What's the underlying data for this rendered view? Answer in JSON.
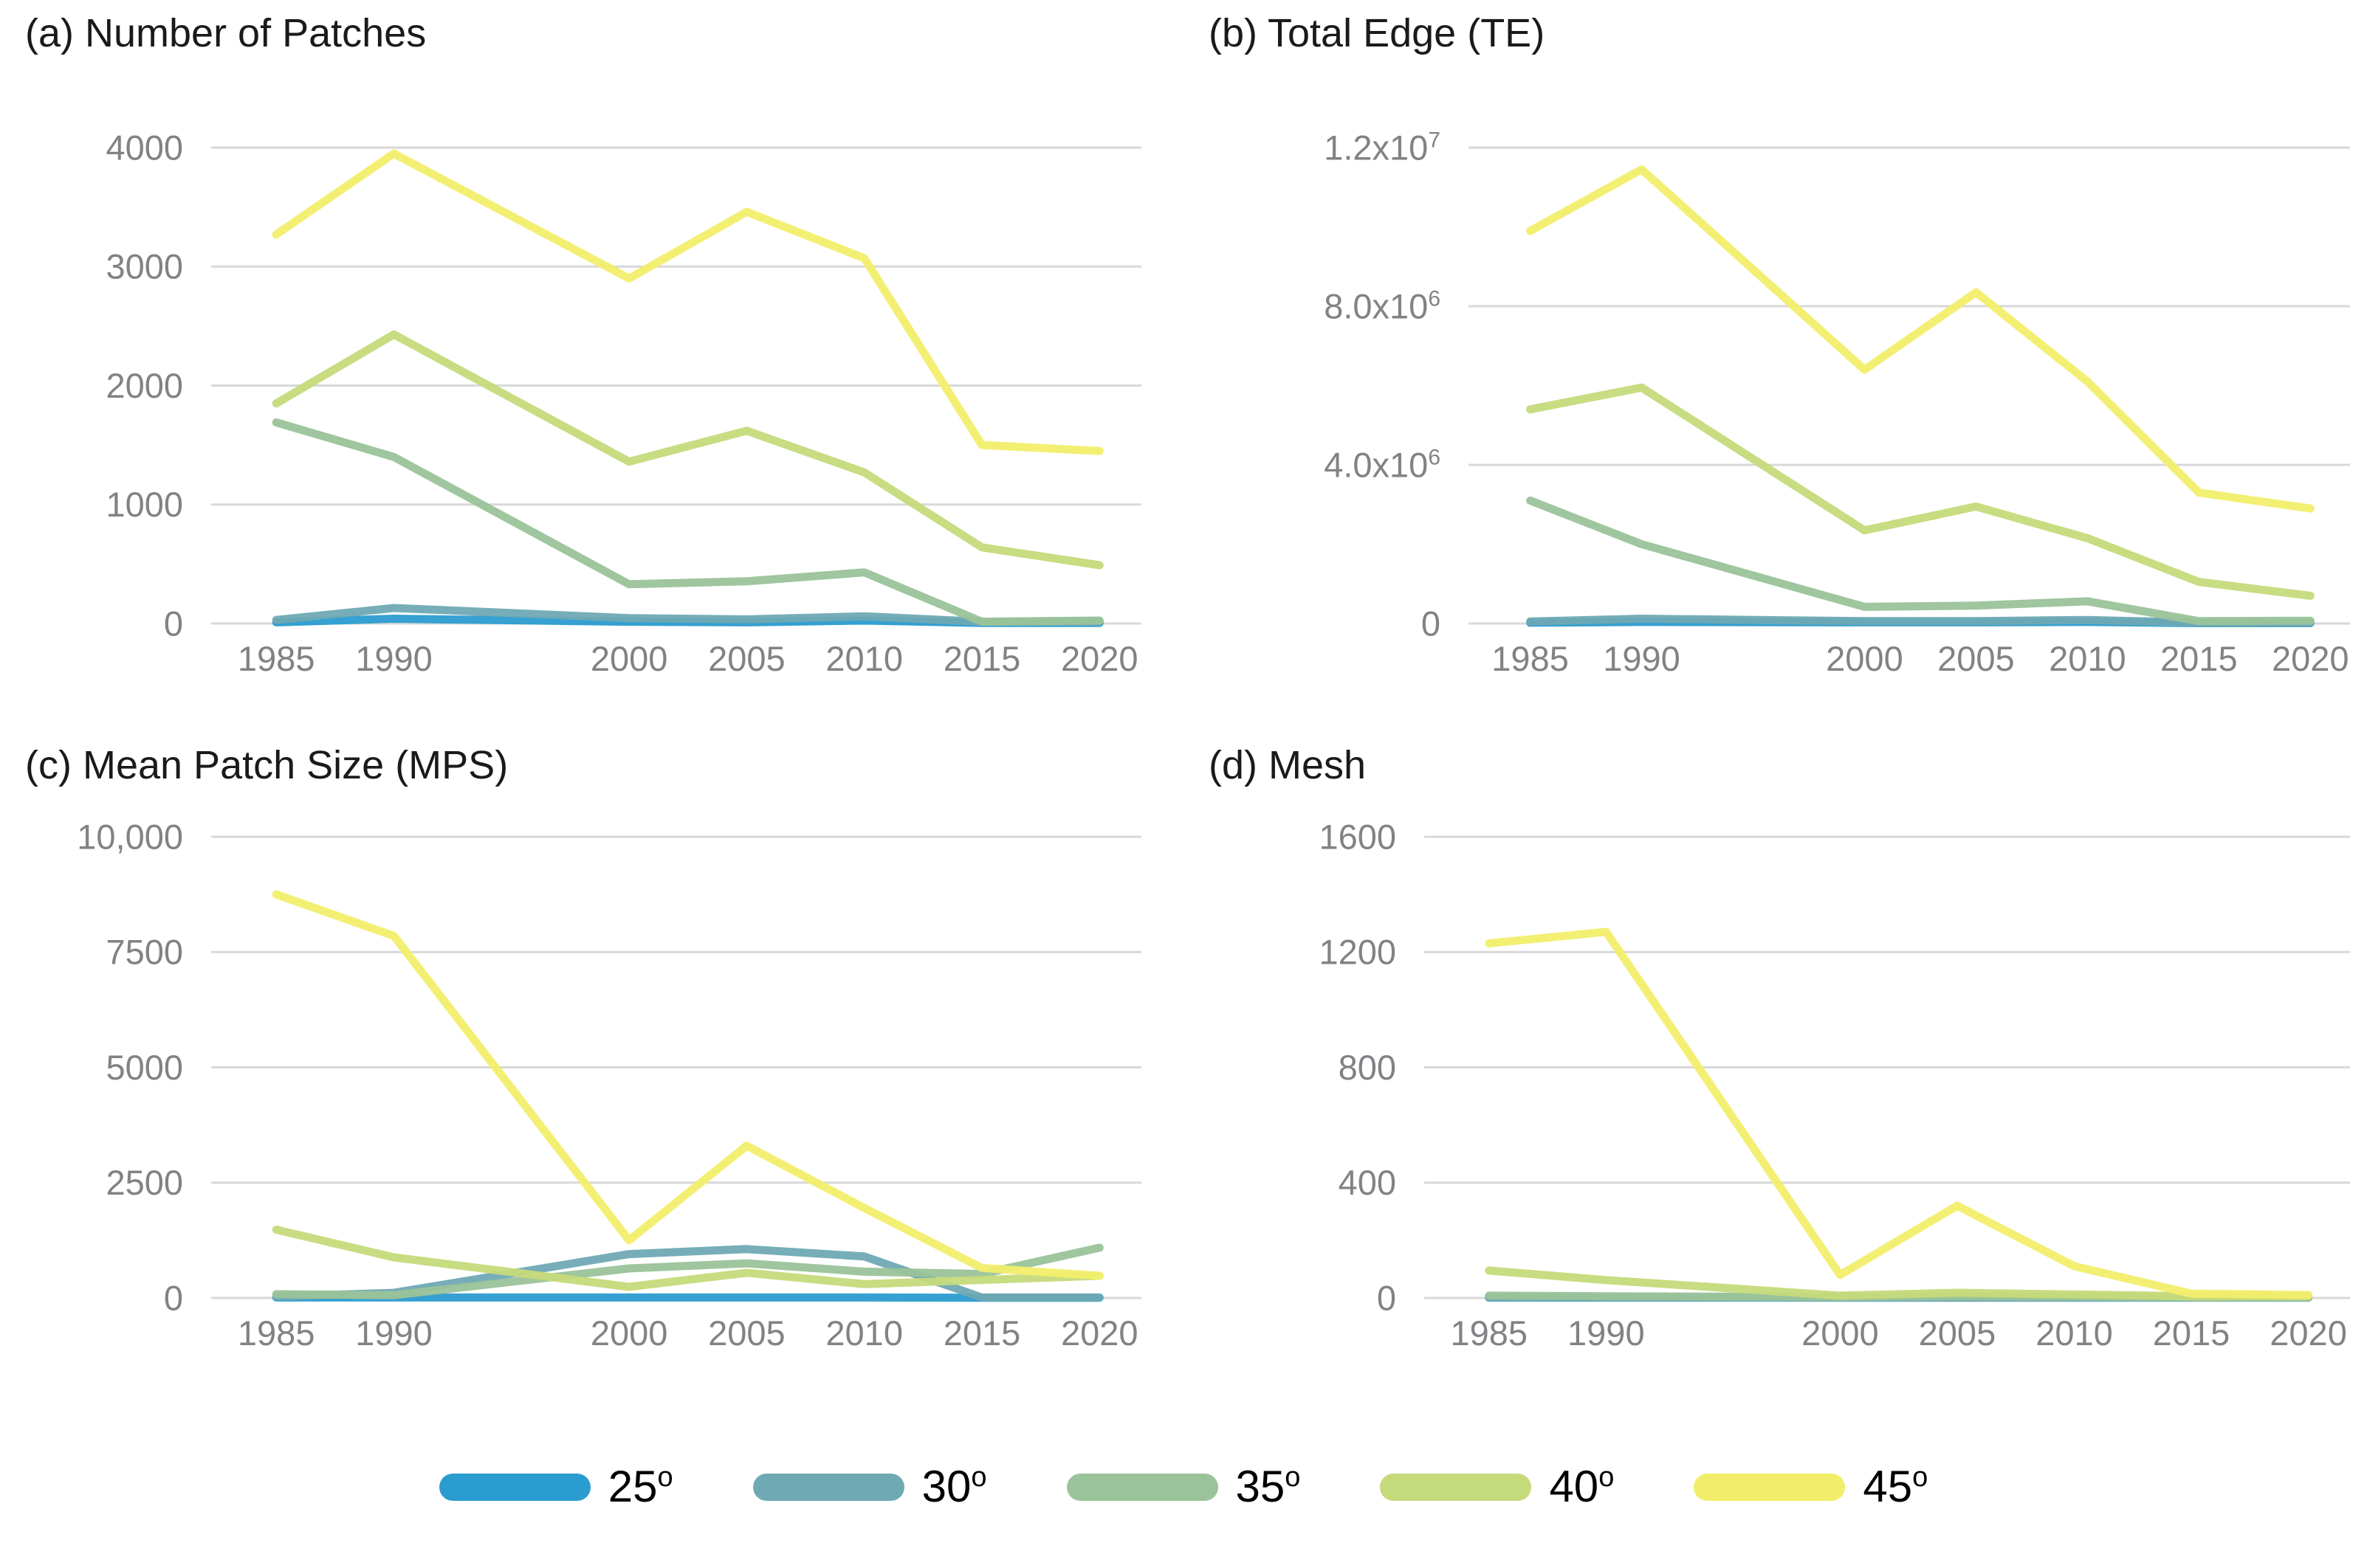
{
  "figure": {
    "background": "#ffffff",
    "gridline_color": "#d8d8d8",
    "tick_label_color": "#808285",
    "title_color": "#1a1a1a"
  },
  "legend": {
    "items": [
      {
        "label": "25^o",
        "color": "#2b9cd0"
      },
      {
        "label": "30^o",
        "color": "#6fa9b4"
      },
      {
        "label": "35^o",
        "color": "#9ac399"
      },
      {
        "label": "40^o",
        "color": "#c5da7a"
      },
      {
        "label": "45^o",
        "color": "#f2ee6b"
      }
    ]
  },
  "chart_data": [
    {
      "id": "a",
      "type": "line",
      "title": "(a) Number of Patches",
      "x": [
        1985,
        1990,
        2000,
        2005,
        2010,
        2015,
        2020
      ],
      "x_tick_labels": [
        "1985",
        "1990",
        "2000",
        "2005",
        "2010",
        "2015",
        "2020"
      ],
      "xlim": [
        1985,
        2020
      ],
      "ylim": [
        0,
        4000
      ],
      "grid": true,
      "yticks": [
        {
          "v": 0,
          "label": "0"
        },
        {
          "v": 1000,
          "label": "1000"
        },
        {
          "v": 2000,
          "label": "2000"
        },
        {
          "v": 3000,
          "label": "3000"
        },
        {
          "v": 4000,
          "label": "4000"
        }
      ],
      "series": [
        {
          "name": "25^o",
          "color": "#2b9cd0",
          "values": [
            10,
            40,
            15,
            10,
            25,
            5,
            5
          ]
        },
        {
          "name": "30^o",
          "color": "#6fa9b4",
          "values": [
            30,
            130,
            45,
            35,
            60,
            15,
            15
          ]
        },
        {
          "name": "35^o",
          "color": "#9ac399",
          "values": [
            1690,
            1400,
            330,
            355,
            430,
            15,
            25
          ]
        },
        {
          "name": "40^o",
          "color": "#c5da7a",
          "values": [
            1850,
            2430,
            1360,
            1620,
            1270,
            640,
            490
          ]
        },
        {
          "name": "45^o",
          "color": "#f2ee6b",
          "values": [
            3270,
            3950,
            2900,
            3460,
            3070,
            1500,
            1450
          ]
        }
      ]
    },
    {
      "id": "b",
      "type": "line",
      "title": "(b) Total Edge (TE)",
      "x": [
        1985,
        1990,
        2000,
        2005,
        2010,
        2015,
        2020
      ],
      "x_tick_labels": [
        "1985",
        "1990",
        "2000",
        "2005",
        "2010",
        "2015",
        "2020"
      ],
      "xlim": [
        1985,
        2020
      ],
      "ylim": [
        0,
        12000000
      ],
      "grid": true,
      "yticks": [
        {
          "v": 0,
          "label": "0"
        },
        {
          "v": 4000000,
          "label": "4.0x10^6"
        },
        {
          "v": 8000000,
          "label": "8.0x10^6"
        },
        {
          "v": 12000000,
          "label": "1.2x10^7"
        }
      ],
      "series": [
        {
          "name": "25^o",
          "color": "#2b9cd0",
          "values": [
            20000,
            40000,
            30000,
            30000,
            40000,
            10000,
            10000
          ]
        },
        {
          "name": "30^o",
          "color": "#6fa9b4",
          "values": [
            50000,
            120000,
            60000,
            60000,
            90000,
            20000,
            20000
          ]
        },
        {
          "name": "35^o",
          "color": "#9ac399",
          "values": [
            3100000,
            2000000,
            420000,
            450000,
            560000,
            60000,
            70000
          ]
        },
        {
          "name": "40^o",
          "color": "#c5da7a",
          "values": [
            5400000,
            5950000,
            2350000,
            2950000,
            2150000,
            1050000,
            700000
          ]
        },
        {
          "name": "45^o",
          "color": "#f2ee6b",
          "values": [
            9900000,
            11450000,
            6400000,
            8350000,
            6100000,
            3300000,
            2900000
          ]
        }
      ]
    },
    {
      "id": "c",
      "type": "line",
      "title": "(c) Mean Patch Size (MPS)",
      "x": [
        1985,
        1990,
        2000,
        2005,
        2010,
        2015,
        2020
      ],
      "x_tick_labels": [
        "1985",
        "1990",
        "2000",
        "2005",
        "2010",
        "2015",
        "2020"
      ],
      "xlim": [
        1985,
        2020
      ],
      "ylim": [
        0,
        10000
      ],
      "grid": true,
      "yticks": [
        {
          "v": 0,
          "label": "0"
        },
        {
          "v": 2500,
          "label": "2500"
        },
        {
          "v": 5000,
          "label": "5000"
        },
        {
          "v": 7500,
          "label": "7500"
        },
        {
          "v": 10000,
          "label": "10,000"
        }
      ],
      "series": [
        {
          "name": "25^o",
          "color": "#2b9cd0",
          "values": [
            10,
            10,
            10,
            10,
            10,
            5,
            5
          ]
        },
        {
          "name": "30^o",
          "color": "#6fa9b4",
          "values": [
            30,
            110,
            950,
            1060,
            900,
            10,
            10
          ]
        },
        {
          "name": "35^o",
          "color": "#9ac399",
          "values": [
            80,
            60,
            640,
            750,
            570,
            520,
            1090
          ]
        },
        {
          "name": "40^o",
          "color": "#c5da7a",
          "values": [
            1480,
            880,
            240,
            545,
            300,
            390,
            480
          ]
        },
        {
          "name": "45^o",
          "color": "#f2ee6b",
          "values": [
            8750,
            7850,
            1250,
            3300,
            1950,
            650,
            480
          ]
        }
      ]
    },
    {
      "id": "d",
      "type": "line",
      "title": "(d) Mesh",
      "x": [
        1985,
        1990,
        2000,
        2005,
        2010,
        2015,
        2020
      ],
      "x_tick_labels": [
        "1985",
        "1990",
        "2000",
        "2005",
        "2010",
        "2015",
        "2020"
      ],
      "xlim": [
        1985,
        2020
      ],
      "ylim": [
        0,
        1600
      ],
      "grid": true,
      "yticks": [
        {
          "v": 0,
          "label": "0"
        },
        {
          "v": 400,
          "label": "400"
        },
        {
          "v": 800,
          "label": "800"
        },
        {
          "v": 1200,
          "label": "1200"
        },
        {
          "v": 1600,
          "label": "1600"
        }
      ],
      "series": [
        {
          "name": "25^o",
          "color": "#2b9cd0",
          "values": [
            1,
            1,
            1,
            1,
            1,
            1,
            1
          ]
        },
        {
          "name": "30^o",
          "color": "#6fa9b4",
          "values": [
            2,
            2,
            1,
            1,
            1,
            1,
            1
          ]
        },
        {
          "name": "35^o",
          "color": "#9ac399",
          "values": [
            8,
            6,
            3,
            6,
            4,
            2,
            2
          ]
        },
        {
          "name": "40^o",
          "color": "#c5da7a",
          "values": [
            95,
            62,
            8,
            18,
            12,
            6,
            6
          ]
        },
        {
          "name": "45^o",
          "color": "#f2ee6b",
          "values": [
            1230,
            1270,
            80,
            320,
            110,
            15,
            10
          ]
        }
      ]
    }
  ]
}
